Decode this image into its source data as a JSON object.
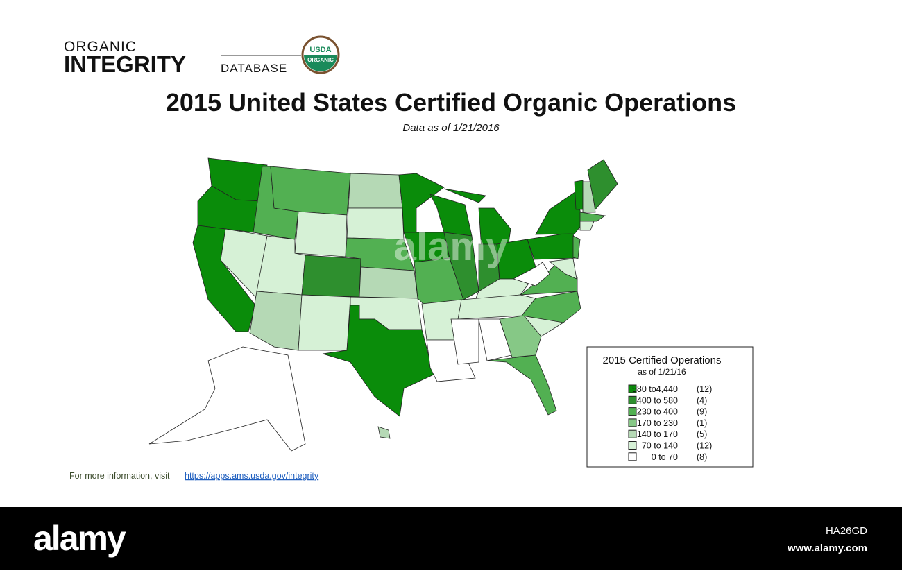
{
  "logo": {
    "line1": "ORGANIC",
    "line2": "INTEGRITY",
    "line3": "DATABASE",
    "seal_top": "USDA",
    "seal_bottom": "ORGANIC"
  },
  "title": "2015 United States Certified Organic Operations",
  "subtitle": "Data as of 1/21/2016",
  "legend": {
    "title": "2015 Certified Operations",
    "subtitle": "as of 1/21/16",
    "items": [
      {
        "range": "580 to4,440",
        "count": "(12)",
        "color": "#0a8c0a"
      },
      {
        "range": "400 to   580",
        "count": "(4)",
        "color": "#2e8f2e"
      },
      {
        "range": "230 to   400",
        "count": "(9)",
        "color": "#52b052"
      },
      {
        "range": "170 to   230",
        "count": "(1)",
        "color": "#86c886"
      },
      {
        "range": "140 to   170",
        "count": "(5)",
        "color": "#b5d9b5"
      },
      {
        "range": "70 to   140",
        "count": "(12)",
        "color": "#d6f1d6"
      },
      {
        "range": "0 to     70",
        "count": "(8)",
        "color": "#ffffff"
      }
    ]
  },
  "footer": {
    "text": "For more information, visit",
    "link": "https://apps.ams.usda.gov/integrity"
  },
  "watermark": "alamy",
  "bottom_bar": {
    "brand": "alamy",
    "image_id": "HA26GD",
    "site": "www.alamy.com"
  }
}
